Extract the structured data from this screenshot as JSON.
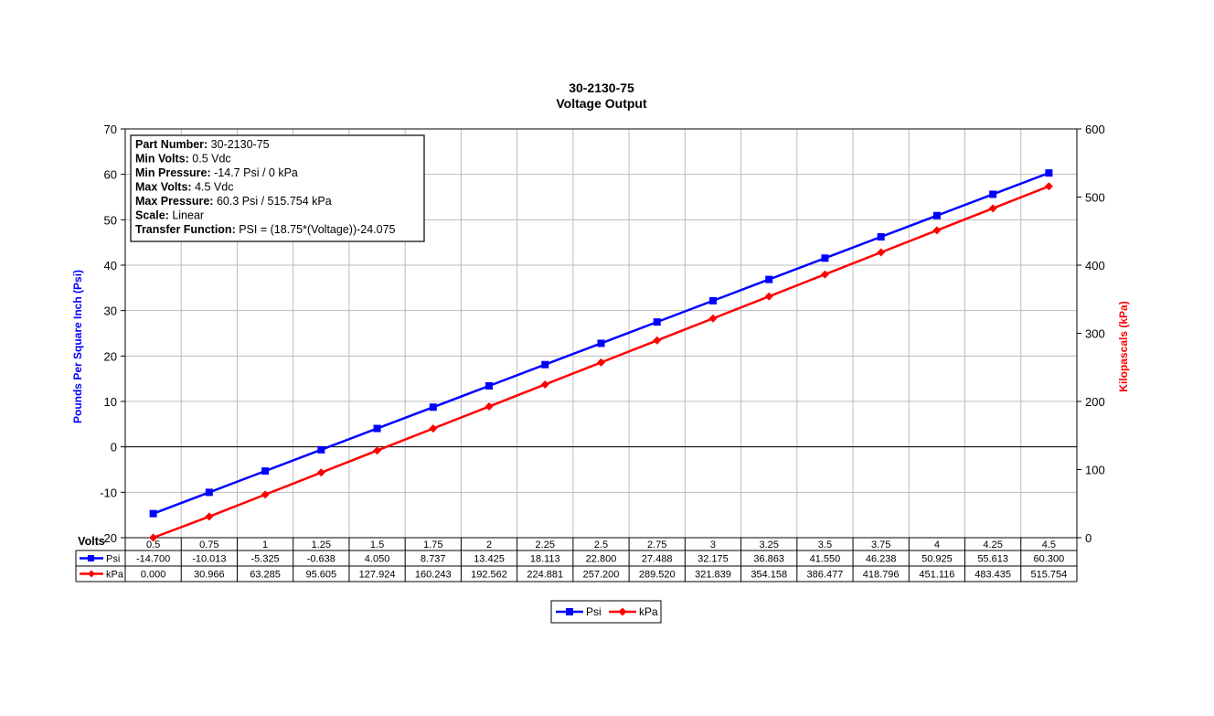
{
  "chart_data": {
    "type": "line",
    "title": "30-2130-75",
    "subtitle": "Voltage Output",
    "xlabel": "Volts",
    "ylabel": "Pounds Per Square Inch (Psi)",
    "y2label": "Kilopascals (kPa)",
    "categories": [
      "0.5",
      "0.75",
      "1",
      "1.25",
      "1.5",
      "1.75",
      "2",
      "2.25",
      "2.5",
      "2.75",
      "3",
      "3.25",
      "3.5",
      "3.75",
      "4",
      "4.25",
      "4.5"
    ],
    "ylim": [
      -20,
      70
    ],
    "yticks": [
      "70",
      "60",
      "50",
      "40",
      "30",
      "20",
      "10",
      "0",
      "-10",
      "-20"
    ],
    "y2lim": [
      0,
      600
    ],
    "y2ticks": [
      "600",
      "500",
      "400",
      "300",
      "200",
      "100",
      "0"
    ],
    "grid": true,
    "legend_position": "bottom-center",
    "series": [
      {
        "name": "Psi",
        "axis": "left",
        "color": "#0000ff",
        "marker": "square",
        "values": [
          -14.7,
          -10.013,
          -5.325,
          -0.638,
          4.05,
          8.737,
          13.425,
          18.113,
          22.8,
          27.488,
          32.175,
          36.863,
          41.55,
          46.238,
          50.925,
          55.613,
          60.3
        ],
        "labels": [
          "-14.700",
          "-10.013",
          "-5.325",
          "-0.638",
          "4.050",
          "8.737",
          "13.425",
          "18.113",
          "22.800",
          "27.488",
          "32.175",
          "36.863",
          "41.550",
          "46.238",
          "50.925",
          "55.613",
          "60.300"
        ]
      },
      {
        "name": "kPa",
        "axis": "right",
        "color": "#ff0000",
        "marker": "diamond",
        "values": [
          0,
          30.966,
          63.285,
          95.605,
          127.924,
          160.243,
          192.562,
          224.881,
          257.2,
          289.52,
          321.839,
          354.158,
          386.477,
          418.796,
          451.116,
          483.435,
          515.754
        ],
        "labels": [
          "0.000",
          "30.966",
          "63.285",
          "95.605",
          "127.924",
          "160.243",
          "192.562",
          "224.881",
          "257.200",
          "289.520",
          "321.839",
          "354.158",
          "386.477",
          "418.796",
          "451.116",
          "483.435",
          "515.754"
        ]
      }
    ],
    "info_box": [
      {
        "label": "Part Number:",
        "value": " 30-2130-75"
      },
      {
        "label": "Min Volts:",
        "value": " 0.5 Vdc"
      },
      {
        "label": "Min Pressure:",
        "value": " -14.7 Psi / 0 kPa"
      },
      {
        "label": "Max Volts:",
        "value": " 4.5 Vdc"
      },
      {
        "label": "Max Pressure:",
        "value": " 60.3 Psi / 515.754 kPa"
      },
      {
        "label": "Scale:",
        "value": " Linear"
      },
      {
        "label": "Transfer Function:",
        "value": " PSI = (18.75*(Voltage))-24.075"
      }
    ]
  }
}
